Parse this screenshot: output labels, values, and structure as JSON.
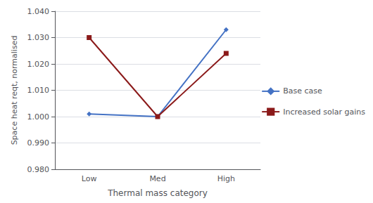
{
  "chart_data": {
    "type": "line",
    "categories": [
      "Low",
      "Med",
      "High"
    ],
    "series": [
      {
        "name": "Base case",
        "color": "#4472C4",
        "marker": "diamond",
        "values": [
          1.001,
          1.0,
          1.033
        ]
      },
      {
        "name": "Increased solar gains",
        "color": "#8B1A1A",
        "marker": "square",
        "values": [
          1.03,
          1.0,
          1.024
        ]
      }
    ],
    "xlabel": "Thermal mass category",
    "ylabel": "Space heat reqt, normalised",
    "ylim": [
      0.98,
      1.04
    ],
    "yticks": [
      {
        "value": 0.98,
        "label": "0.980"
      },
      {
        "value": 0.99,
        "label": "0.990"
      },
      {
        "value": 1.0,
        "label": "1.000"
      },
      {
        "value": 1.01,
        "label": "1.010"
      },
      {
        "value": 1.02,
        "label": "1.020"
      },
      {
        "value": 1.03,
        "label": "1.030"
      },
      {
        "value": 1.04,
        "label": "1.040"
      }
    ],
    "grid": true,
    "legend": "right"
  }
}
